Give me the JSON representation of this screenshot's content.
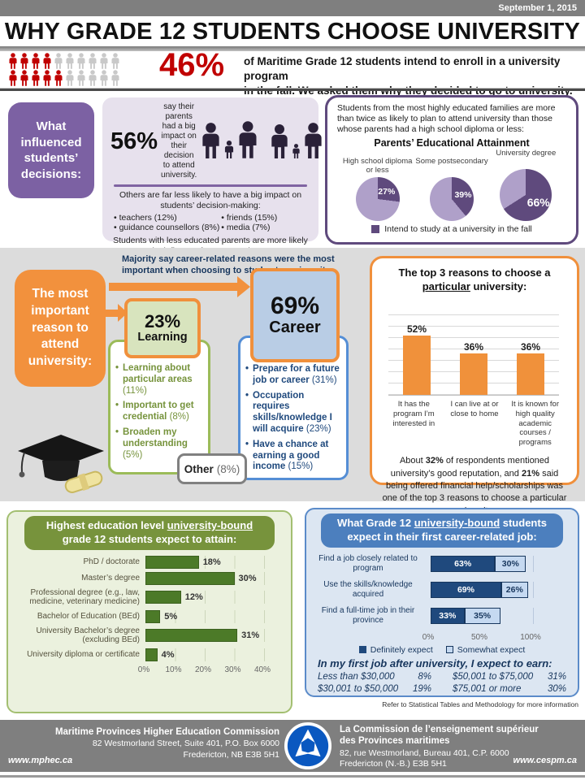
{
  "meta": {
    "date": "September 1, 2015"
  },
  "colors": {
    "accent_purple": "#7C61A3",
    "accent_orange": "#F0903C",
    "accent_green": "#77933C",
    "accent_blue": "#4C7FBE",
    "stat_red": "#C00000",
    "footer_gray": "#7F7F7F"
  },
  "header": {
    "title": "WHY GRADE 12 STUDENTS CHOOSE UNIVERSITY",
    "stat_value": "46%",
    "stat_line1": "of Maritime Grade 12 students intend to enroll in a university program",
    "stat_line2": "in the fall. We asked them why they decided to go to university."
  },
  "influence": {
    "heading": "What influenced students’ decisions:",
    "parents_stat": "56%",
    "parents_text": "say their parents had a big impact on their decision to attend university.",
    "others_intro": "Others are far less likely to have a big impact on students’ decision-making:",
    "bullets": [
      "teachers (12%)",
      "guidance counsellors (8%)",
      "friends (15%)",
      "media (7%)"
    ],
    "closing": "Students with less educated parents are more likely to cite influence from external sources",
    "panel_intro": "Students from the most highly educated families are more than twice as likely to plan to attend university than those whose parents had a high school diploma or less:"
  },
  "reasons": {
    "heading": "The most important reason to attend university:",
    "note": "Majority say career-related reasons were the most important when choosing to study at a university",
    "learning": {
      "stat": "23%",
      "label": "Learning",
      "items": [
        {
          "label": "Learning about particular areas",
          "pct": "(11%)"
        },
        {
          "label": "Important to get credential",
          "pct": "(8%)"
        },
        {
          "label": "Broaden my understanding",
          "pct": "(5%)"
        }
      ]
    },
    "career": {
      "stat": "69%",
      "label": "Career",
      "items": [
        {
          "label": "Prepare for a future job or career",
          "pct": "(31%)"
        },
        {
          "label": "Occupation requires skills/knowledge I will acquire",
          "pct": "(23%)"
        },
        {
          "label": "Have a chance at earning a good income",
          "pct": "(15%)"
        }
      ]
    },
    "other_label": "Other",
    "other_pct": "(8%)"
  },
  "top3": {
    "title_pre": "The top 3 reasons to choose a ",
    "title_u": "particular",
    "title_post": " university:",
    "footnote_parts": [
      "About ",
      "32%",
      " of respondents mentioned university’s good reputation, and ",
      "21%",
      " said being offered financial help/scholarships was one of the top 3 reasons to choose a particular university."
    ]
  },
  "attainment": {
    "header_pre": "Highest education level ",
    "header_u": "university-bound",
    "header_post": " grade 12 students expect to attain:"
  },
  "jobs": {
    "header_pre": "What Grade 12 ",
    "header_u": "university-bound",
    "header_post": " students expect in their first career-related job:",
    "earn_heading": "In my first job after university, I expect to earn:",
    "earn_rows": [
      {
        "label": "Less than $30,000",
        "value": "8%"
      },
      {
        "label": "$30,001 to $50,000",
        "value": "19%"
      },
      {
        "label": "$50,001 to $75,000",
        "value": "31%"
      },
      {
        "label": "$75,001 or more",
        "value": "30%"
      }
    ],
    "footnote": "Refer to Statistical Tables and Methodology for more information"
  },
  "footer": {
    "en_name": "Maritime Provinces Higher Education Commission",
    "en_addr1": "82 Westmorland Street, Suite 401, P.O. Box 6000",
    "en_addr2": "Fredericton, NB E3B 5H1",
    "en_url": "www.mphec.ca",
    "fr_name": "La Commission de l’enseignement supérieur des Provinces maritimes",
    "fr_addr1": "82, rue Westmorland, Bureau 401, C.P. 6000",
    "fr_addr2": "Fredericton (N.-B.)  E3B 5H1",
    "fr_url": "www.cespm.ca"
  },
  "chart_data": [
    {
      "id": "students_pictograph",
      "type": "pictograph",
      "value": "46%",
      "rows": [
        {
          "total": 10,
          "filled": 4
        },
        {
          "total": 10,
          "filled": 5
        }
      ],
      "filled_color": "#C00000",
      "empty_color": "#C9C9C9",
      "label": "46% of Maritime Grade 12 students intend to enroll in a university program in the fall."
    },
    {
      "id": "parents_pies",
      "type": "pie",
      "title": "Parents’ Educational Attainment",
      "categories": [
        "High school diploma or less",
        "Some postsecondary",
        "University degree"
      ],
      "values": [
        27,
        39,
        66
      ],
      "legend": "Intend to study at a university in the fall",
      "slice_color": "#5F4A7D",
      "rest_color": "#AFA0C9",
      "sizes": [
        54,
        54,
        64
      ]
    },
    {
      "id": "top3_reasons",
      "type": "bar",
      "categories": [
        "It has the program I’m interested in",
        "I can live at or close to home",
        "It is known for high quality academic courses / programs"
      ],
      "values": [
        52,
        36,
        36
      ],
      "unit": "%",
      "ylim": [
        0,
        80
      ],
      "gridline_step": 10,
      "color": "#F0913B"
    },
    {
      "id": "attainment",
      "type": "hbar",
      "categories": [
        "PhD / doctorate",
        "Master’s degree",
        "Professional degree (e.g., law, medicine, veterinary medicine)",
        "Bachelor of Education (BEd)",
        "University Bachelor’s degree (excluding BEd)",
        "University diploma or certificate"
      ],
      "values": [
        18,
        30,
        12,
        5,
        31,
        4
      ],
      "unit": "%",
      "xlim": [
        0,
        40
      ],
      "ticks": [
        "0%",
        "10%",
        "20%",
        "30%",
        "40%"
      ],
      "color": "#4C7A28"
    },
    {
      "id": "job_expectations",
      "type": "stacked-hbar",
      "categories": [
        "Find a job closely related to program",
        "Use the skills/knowledge acquired",
        "Find a full-time job in their province"
      ],
      "series": [
        {
          "name": "Definitely expect",
          "values": [
            63,
            69,
            33
          ],
          "color": "#1F497D"
        },
        {
          "name": "Somewhat expect",
          "values": [
            30,
            26,
            35
          ],
          "color": "#C5D9F1"
        }
      ],
      "unit": "%",
      "xlim": [
        0,
        100
      ],
      "ticks": [
        "0%",
        "50%",
        "100%"
      ]
    }
  ]
}
